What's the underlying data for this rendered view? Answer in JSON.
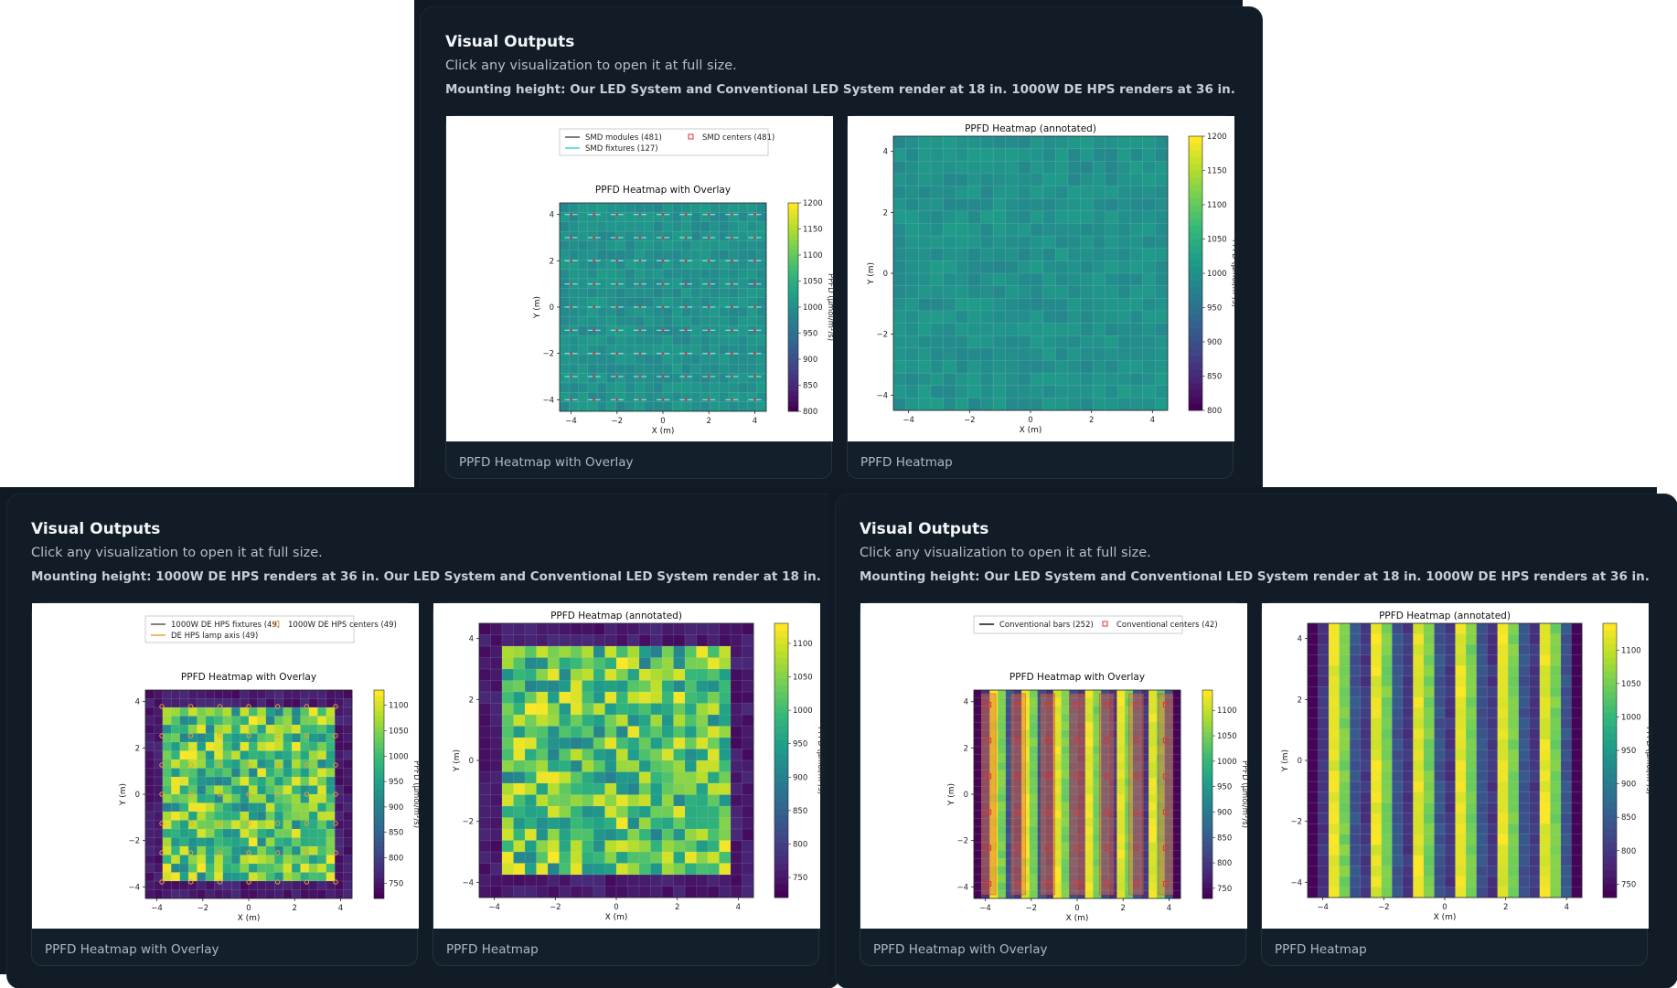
{
  "panels": [
    {
      "title": "Visual Outputs",
      "subtitle": "Click any visualization to open it at full size.",
      "mounting": "Mounting height: Our LED System and Conventional LED System render at 18 in. 1000W DE HPS renders at 36 in.",
      "cards": [
        {
          "caption": "PPFD Heatmap with Overlay"
        },
        {
          "caption": "PPFD Heatmap"
        }
      ]
    },
    {
      "title": "Visual Outputs",
      "subtitle": "Click any visualization to open it at full size.",
      "mounting": "Mounting height: 1000W DE HPS renders at 36 in. Our LED System and Conventional LED System render at 18 in.",
      "cards": [
        {
          "caption": "PPFD Heatmap with Overlay"
        },
        {
          "caption": "PPFD Heatmap"
        }
      ]
    },
    {
      "title": "Visual Outputs",
      "subtitle": "Click any visualization to open it at full size.",
      "mounting": "Mounting height: Our LED System and Conventional LED System render at 18 in. 1000W DE HPS renders at 36 in.",
      "cards": [
        {
          "caption": "PPFD Heatmap with Overlay"
        },
        {
          "caption": "PPFD Heatmap"
        }
      ]
    }
  ],
  "chart_data": [
    {
      "id": "led-overlay",
      "type": "heatmap",
      "title": "PPFD Heatmap with Overlay",
      "xlabel": "X (m)",
      "ylabel": "Y (m)",
      "xticks": [
        -4,
        -2,
        0,
        2,
        4
      ],
      "yticks": [
        -4,
        -2,
        0,
        2,
        4
      ],
      "xlim": [
        -4.5,
        4.5
      ],
      "ylim": [
        -4.5,
        4.5
      ],
      "colorbar_label": "PPFD (µmol/m²/s)",
      "colorbar_ticks": [
        800,
        850,
        900,
        950,
        1000,
        1050,
        1100,
        1150,
        1200
      ],
      "colorbar_range": [
        800,
        1200
      ],
      "legend": [
        "SMD modules (481)",
        "SMD centers (481)",
        "SMD fixtures (127)"
      ],
      "pattern": "uniform",
      "mean": 1000
    },
    {
      "id": "led-annot",
      "type": "heatmap",
      "title": "PPFD Heatmap (annotated)",
      "xlabel": "X (m)",
      "ylabel": "Y (m)",
      "xticks": [
        -4,
        -2,
        0,
        2,
        4
      ],
      "yticks": [
        -4,
        -2,
        0,
        2,
        4
      ],
      "xlim": [
        -4.5,
        4.5
      ],
      "ylim": [
        -4.5,
        4.5
      ],
      "colorbar_label": "PPFD (µmol/m²/s)",
      "colorbar_ticks": [
        800,
        850,
        900,
        950,
        1000,
        1050,
        1100,
        1150,
        1200
      ],
      "colorbar_range": [
        800,
        1200
      ],
      "legend": [],
      "pattern": "uniform",
      "mean": 1000
    },
    {
      "id": "hps-overlay",
      "type": "heatmap",
      "title": "PPFD Heatmap with Overlay",
      "xlabel": "X (m)",
      "ylabel": "Y (m)",
      "xticks": [
        -4,
        -2,
        0,
        2,
        4
      ],
      "yticks": [
        -4,
        -2,
        0,
        2,
        4
      ],
      "xlim": [
        -4.5,
        4.5
      ],
      "ylim": [
        -4.5,
        4.5
      ],
      "colorbar_label": "PPFD (µmol/m²/s)",
      "colorbar_ticks": [
        750,
        800,
        850,
        900,
        950,
        1000,
        1050,
        1100
      ],
      "colorbar_range": [
        720,
        1130
      ],
      "legend": [
        "1000W DE HPS fixtures (49)",
        "1000W DE HPS centers (49)",
        "DE HPS lamp axis (49)"
      ],
      "pattern": "hps",
      "mean": 1000
    },
    {
      "id": "hps-annot",
      "type": "heatmap",
      "title": "PPFD Heatmap (annotated)",
      "xlabel": "X (m)",
      "ylabel": "Y (m)",
      "xticks": [
        -4,
        -2,
        0,
        2,
        4
      ],
      "yticks": [
        -4,
        -2,
        0,
        2,
        4
      ],
      "xlim": [
        -4.5,
        4.5
      ],
      "ylim": [
        -4.5,
        4.5
      ],
      "colorbar_label": "PPFD (µmol/m²/s)",
      "colorbar_ticks": [
        750,
        800,
        850,
        900,
        950,
        1000,
        1050,
        1100
      ],
      "colorbar_range": [
        720,
        1130
      ],
      "legend": [],
      "pattern": "hps",
      "mean": 1000
    },
    {
      "id": "conv-overlay",
      "type": "heatmap",
      "title": "PPFD Heatmap with Overlay",
      "xlabel": "X (m)",
      "ylabel": "Y (m)",
      "xticks": [
        -4,
        -2,
        0,
        2,
        4
      ],
      "yticks": [
        -4,
        -2,
        0,
        2,
        4
      ],
      "xlim": [
        -4.5,
        4.5
      ],
      "ylim": [
        -4.5,
        4.5
      ],
      "colorbar_label": "PPFD (µmol/m²/s)",
      "colorbar_ticks": [
        750,
        800,
        850,
        900,
        950,
        1000,
        1050,
        1100
      ],
      "colorbar_range": [
        730,
        1140
      ],
      "legend": [
        "Conventional bars (252)",
        "Conventional centers (42)"
      ],
      "pattern": "bars",
      "mean": 1000
    },
    {
      "id": "conv-annot",
      "type": "heatmap",
      "title": "PPFD Heatmap (annotated)",
      "xlabel": "X (m)",
      "ylabel": "Y (m)",
      "xticks": [
        -4,
        -2,
        0,
        2,
        4
      ],
      "yticks": [
        -4,
        -2,
        0,
        2,
        4
      ],
      "xlim": [
        -4.5,
        4.5
      ],
      "ylim": [
        -4.5,
        4.5
      ],
      "colorbar_label": "PPFD (µmol/m²/s)",
      "colorbar_ticks": [
        750,
        800,
        850,
        900,
        950,
        1000,
        1050,
        1100
      ],
      "colorbar_range": [
        730,
        1140
      ],
      "legend": [],
      "pattern": "bars",
      "mean": 1000
    }
  ]
}
